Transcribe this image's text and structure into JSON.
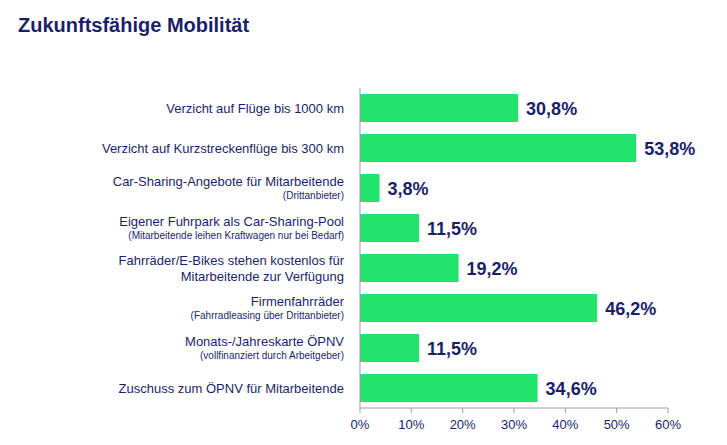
{
  "chart_data": {
    "type": "bar",
    "orientation": "horizontal",
    "title": "Zukunftsfähige Mobilität",
    "categories": [
      "Verzicht auf Flüge bis 1000 km",
      "Verzicht auf Kurzstreckenflüge bis 300 km",
      "Car-Sharing-Angebote für Mitarbeitende\n(Drittanbieter)",
      "Eigener Fuhrpark als Car-Sharing-Pool\n(Mitarbeitende leihen Kraftwagen nur bei Bedarf)",
      "Fahrräder/E-Bikes stehen kostenlos für\nMitarbeitende zur Verfügung",
      "Firmenfahrräder\n(Fahrradleasing über Drittanbieter)",
      "Monats-/Jahreskarte ÖPNV\n(vollfinanziert durch Arbeitgeber)",
      "Zuschuss zum ÖPNV für Mitarbeitende"
    ],
    "values": [
      30.8,
      53.8,
      3.8,
      11.5,
      19.2,
      46.2,
      11.5,
      34.6
    ],
    "value_labels": [
      "30,8%",
      "53,8%",
      "3,8%",
      "11,5%",
      "19,2%",
      "46,2%",
      "11,5%",
      "34,6%"
    ],
    "data_labels": true,
    "color": "#22e36b",
    "xlim": [
      0,
      60
    ],
    "xticks": [
      {
        "value": 0,
        "label": "0%"
      },
      {
        "value": 10,
        "label": "10%"
      },
      {
        "value": 20,
        "label": "20%"
      },
      {
        "value": 30,
        "label": "30%"
      },
      {
        "value": 40,
        "label": "40%"
      },
      {
        "value": 50,
        "label": "50%"
      },
      {
        "value": 60,
        "label": "60%"
      }
    ],
    "grid": false
  }
}
